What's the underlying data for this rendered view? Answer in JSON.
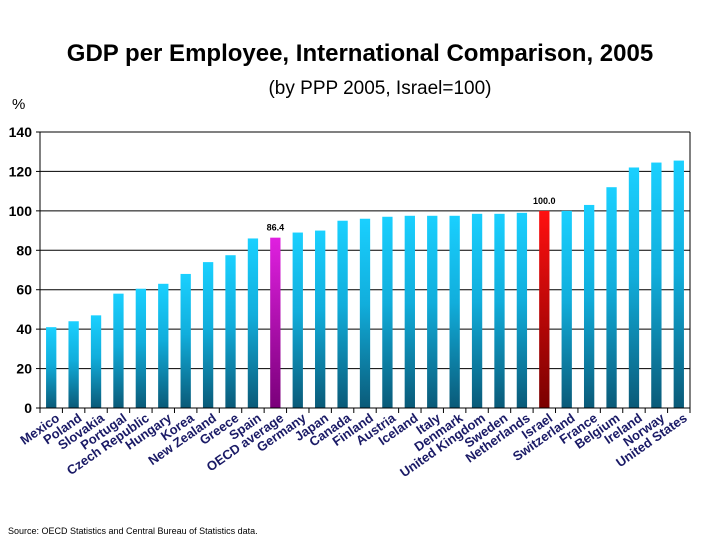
{
  "chart_data": {
    "type": "bar",
    "title": "GDP per Employee, International Comparison, 2005",
    "subtitle": "(by PPP 2005, Israel=100)",
    "ylabel": "%",
    "ylim": [
      0,
      140
    ],
    "yticks": [
      0,
      20,
      40,
      60,
      80,
      100,
      120,
      140
    ],
    "grid": true,
    "categories": [
      "Mexico",
      "Poland",
      "Slovakia",
      "Portugal",
      "Czech Republic",
      "Hungary",
      "Korea",
      "New Zealand",
      "Greece",
      "Spain",
      "OECD average",
      "Germany",
      "Japan",
      "Canada",
      "Finland",
      "Austria",
      "Iceland",
      "Italy",
      "Denmark",
      "United Kingdom",
      "Sweden",
      "Netherlands",
      "Israel",
      "Switzerland",
      "France",
      "Belgium",
      "Ireland",
      "Norway",
      "United States"
    ],
    "values": [
      41,
      44,
      47,
      58,
      60.5,
      63,
      68,
      74,
      77.5,
      86,
      86.4,
      89,
      90,
      95,
      96,
      97,
      97.5,
      97.5,
      97.5,
      98.5,
      98.5,
      99,
      100.0,
      100,
      103,
      112,
      122,
      124.5,
      125.5
    ],
    "highlight": {
      "OECD average": "#c000c0",
      "Israel": "#e00000"
    },
    "data_labels": {
      "OECD average": "86.4",
      "Israel": "100.0"
    },
    "bar_color": "#11c6f2"
  },
  "source": "Source: OECD Statistics and Central Bureau of Statistics data."
}
